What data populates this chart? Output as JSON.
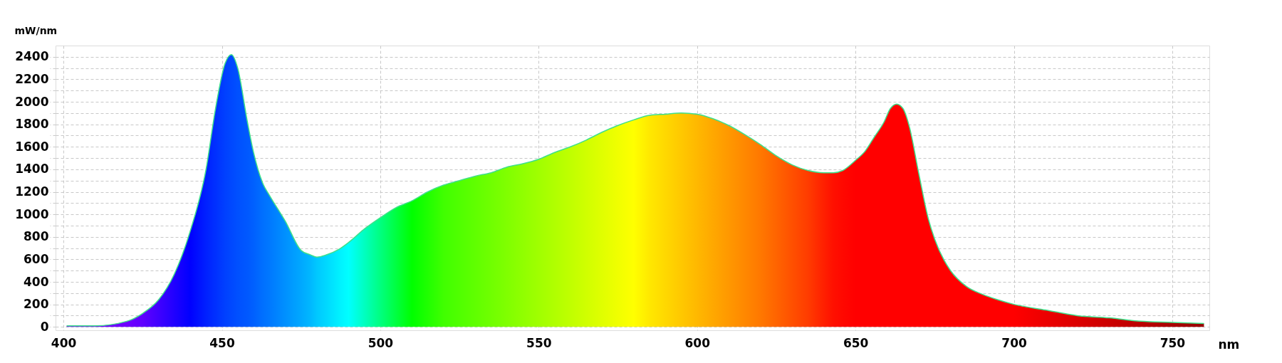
{
  "chart_data": {
    "type": "area",
    "xlabel": "nm",
    "ylabel": "mW/nm",
    "xlim": [
      397.5,
      761.7
    ],
    "xticks": [
      400,
      450,
      500,
      550,
      600,
      650,
      700,
      750
    ],
    "ylim": [
      -30,
      2500
    ],
    "yticks": [
      0,
      {
        "value": 100,
        "label": null
      },
      200,
      {
        "value": 300,
        "label": null
      },
      400,
      {
        "value": 500,
        "label": null
      },
      600,
      {
        "value": 700,
        "label": null
      },
      800,
      {
        "value": 900,
        "label": null
      },
      1000,
      {
        "value": 1100,
        "label": null
      },
      1200,
      {
        "value": 1300,
        "label": null
      },
      1400,
      {
        "value": 1500,
        "label": null
      },
      1600,
      {
        "value": 1700,
        "label": null
      },
      1800,
      {
        "value": 1900,
        "label": null
      },
      2000,
      {
        "value": 2100,
        "label": null
      },
      2200,
      {
        "value": 2300,
        "label": null
      },
      2400
    ],
    "grid": true,
    "x": [
      401,
      410,
      420,
      425,
      430,
      435,
      440,
      445,
      448,
      451,
      453,
      455,
      458,
      460,
      463,
      465,
      470,
      475,
      478,
      480,
      483,
      487,
      490,
      495,
      500,
      505,
      510,
      515,
      520,
      525,
      530,
      535,
      540,
      545,
      550,
      555,
      560,
      565,
      570,
      575,
      580,
      585,
      590,
      595,
      600,
      605,
      610,
      615,
      620,
      625,
      630,
      635,
      640,
      643,
      646,
      650,
      653,
      656,
      659,
      661,
      663,
      665,
      667,
      670,
      673,
      675,
      678,
      680,
      685,
      690,
      695,
      700,
      710,
      720,
      730,
      740,
      750,
      760
    ],
    "series": [
      {
        "color": "#3ee08a",
        "values": [
          10,
          10,
          50,
          120,
          240,
          470,
          850,
          1400,
          1940,
          2340,
          2420,
          2300,
          1830,
          1550,
          1270,
          1170,
          940,
          680,
          640,
          620,
          640,
          690,
          750,
          870,
          970,
          1060,
          1120,
          1200,
          1260,
          1300,
          1340,
          1370,
          1420,
          1450,
          1490,
          1550,
          1600,
          1660,
          1730,
          1790,
          1840,
          1880,
          1890,
          1900,
          1890,
          1850,
          1790,
          1710,
          1620,
          1520,
          1440,
          1390,
          1370,
          1370,
          1390,
          1480,
          1560,
          1690,
          1820,
          1940,
          1980,
          1940,
          1780,
          1360,
          960,
          780,
          590,
          500,
          360,
          290,
          240,
          200,
          150,
          100,
          80,
          50,
          40,
          30
        ],
        "colors": [
          "#7000ff",
          "#7000ff",
          "#7000ff",
          "#6000ff",
          "#4000ff",
          "#2000ff",
          "#0000ff",
          "#0020ff",
          "#0030ff",
          "#0040ff",
          "#0048ff",
          "#0050ff",
          "#0058ff",
          "#0060ff",
          "#0070ff",
          "#0078ff",
          "#0090ff",
          "#00a8ff",
          "#00b8ff",
          "#00c8ff",
          "#00d8ff",
          "#00f0ff",
          "#00ffff",
          "#00ffc0",
          "#00ff80",
          "#00ff40",
          "#00ff00",
          "#20ff00",
          "#40ff00",
          "#50ff00",
          "#60ff00",
          "#70ff00",
          "#80ff00",
          "#90ff00",
          "#a0ff00",
          "#b0ff00",
          "#c0ff00",
          "#d0ff00",
          "#e0ff00",
          "#f0ff00",
          "#ffff00",
          "#ffe800",
          "#ffd800",
          "#ffc800",
          "#ffb800",
          "#ffa800",
          "#ff9800",
          "#ff8800",
          "#ff7800",
          "#ff6400",
          "#ff5000",
          "#ff3c00",
          "#ff2000",
          "#ff1000",
          "#ff0800",
          "#ff0000",
          "#ff0000",
          "#ff0000",
          "#ff0000",
          "#ff0000",
          "#ff0000",
          "#ff0000",
          "#ff0000",
          "#ff0000",
          "#ff0000",
          "#ff0000",
          "#ff0000",
          "#ff0000",
          "#ff0000",
          "#ff0000",
          "#ff0000",
          "#ff0000",
          "#ec0000",
          "#dc0000",
          "#cc0000",
          "#bc0000",
          "#aa0000",
          "#990000"
        ]
      }
    ]
  }
}
